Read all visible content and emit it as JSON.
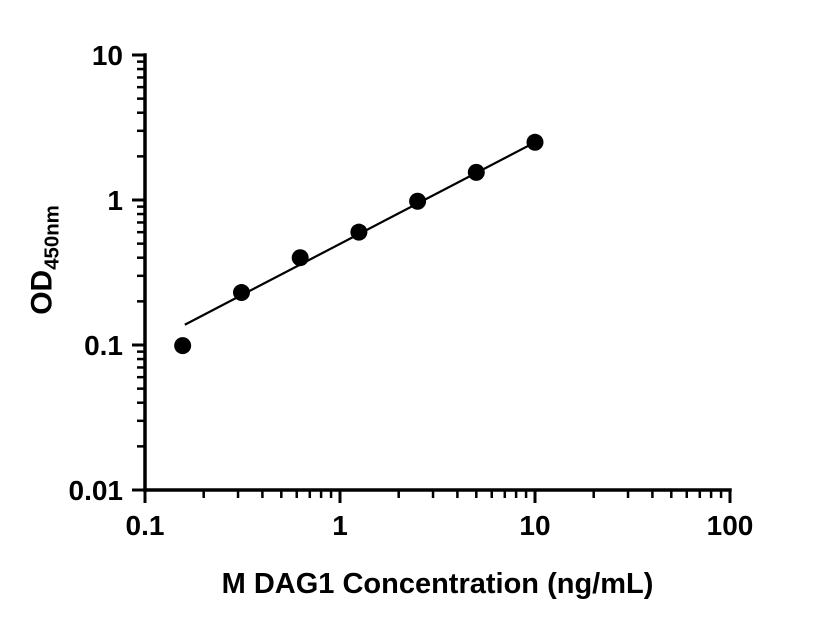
{
  "figure": {
    "background_color": "#ffffff"
  },
  "chart_data": {
    "type": "scatter",
    "title": "",
    "xlabel": "M DAG1 Concentration (ng/mL)",
    "ylabel_main": "OD",
    "ylabel_sub": "450nm",
    "xscale": "log",
    "yscale": "log",
    "xlim": [
      0.1,
      100
    ],
    "ylim": [
      0.01,
      10
    ],
    "x_tick_labels": [
      "0.1",
      "1",
      "10",
      "100"
    ],
    "y_tick_labels": [
      "0.01",
      "0.1",
      "1",
      "10"
    ],
    "grid": false,
    "legend": "none",
    "marker_color": "#000000",
    "line_color": "#000000",
    "points": [
      {
        "x": 0.156,
        "y": 0.099
      },
      {
        "x": 0.3125,
        "y": 0.23
      },
      {
        "x": 0.625,
        "y": 0.4
      },
      {
        "x": 1.25,
        "y": 0.6
      },
      {
        "x": 2.5,
        "y": 0.98
      },
      {
        "x": 5,
        "y": 1.55
      },
      {
        "x": 10,
        "y": 2.5
      }
    ],
    "trend_line": {
      "x_start": 0.16,
      "y_start": 0.138,
      "x_end": 10,
      "y_end": 2.5
    }
  }
}
